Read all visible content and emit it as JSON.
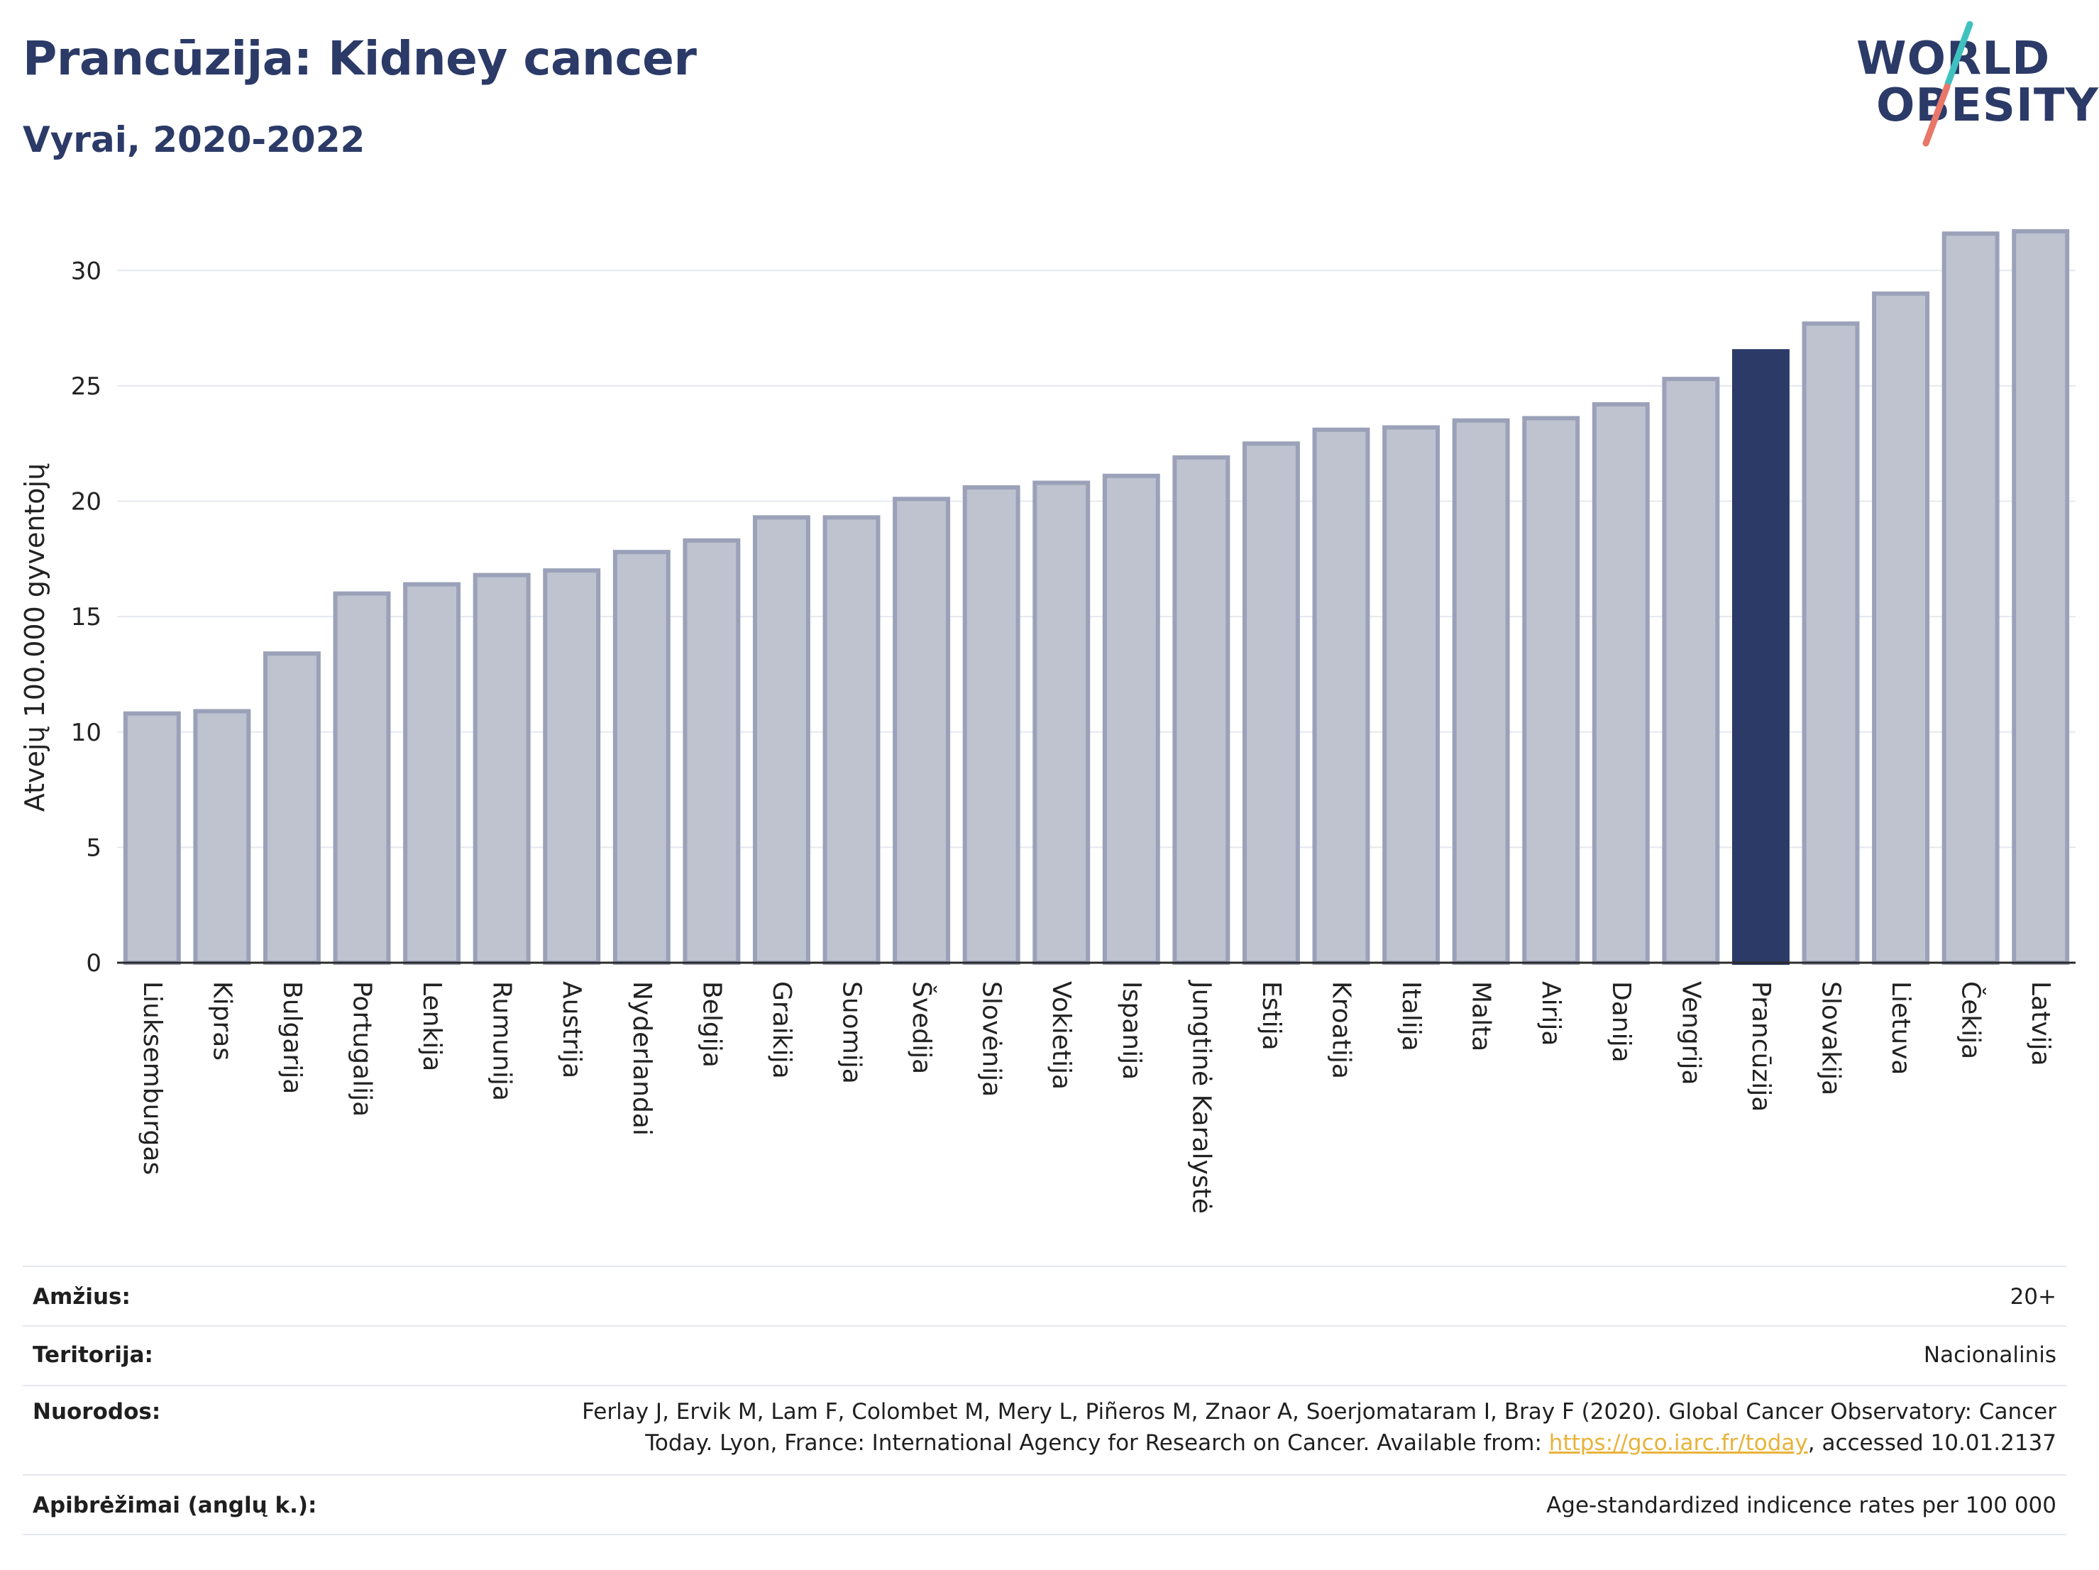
{
  "header": {
    "title": "Prancūzija: Kidney cancer",
    "subtitle": "Vyrai, 2020-2022"
  },
  "logo": {
    "line1": "WORLD",
    "line2": "OBESITY"
  },
  "colors": {
    "bar": "#bfc3d0",
    "bar_outline": "#9aa1b8",
    "highlight": "#2b3a67",
    "grid": "#e6e8ef",
    "logo_teal": "#3fc1c0",
    "logo_coral": "#e8776a"
  },
  "chart_data": {
    "type": "bar",
    "ylabel": "Atvejų 100.000 gyventojų",
    "ylim": [
      0,
      32.5
    ],
    "yticks": [
      0,
      5,
      10,
      15,
      20,
      25,
      30
    ],
    "grid": true,
    "highlight": "Prancūzija",
    "categories": [
      "Liuksemburgas",
      "Kipras",
      "Bulgarija",
      "Portugalija",
      "Lenkija",
      "Rumunija",
      "Austrija",
      "Nyderlandai",
      "Belgija",
      "Graikija",
      "Suomija",
      "Švedija",
      "Slovėnija",
      "Vokietija",
      "Ispanija",
      "Jungtinė Karalystė",
      "Estija",
      "Kroatija",
      "Italija",
      "Malta",
      "Airija",
      "Danija",
      "Vengrija",
      "Prancūzija",
      "Slovakija",
      "Lietuva",
      "Čekija",
      "Latvija"
    ],
    "values": [
      10.8,
      10.9,
      13.4,
      16.0,
      16.4,
      16.8,
      17.0,
      17.8,
      18.3,
      19.3,
      19.3,
      20.1,
      20.6,
      20.8,
      21.1,
      21.9,
      22.5,
      23.1,
      23.2,
      23.5,
      23.6,
      24.2,
      25.3,
      26.5,
      27.7,
      29.0,
      31.6,
      31.7
    ]
  },
  "meta": {
    "age_label": "Amžius:",
    "age_value": "20+",
    "territory_label": "Teritorija:",
    "territory_value": "Nacionalinis",
    "refs_label": "Nuorodos:",
    "refs_line1": "Ferlay J, Ervik M, Lam F, Colombet M, Mery L, Piñeros M, Znaor A, Soerjomataram I, Bray F (2020). Global Cancer Observatory: Cancer",
    "refs_line2_pre": "Today. Lyon, France: International Agency for Research on Cancer. Available from: ",
    "refs_link": "https://gco.iarc.fr/today",
    "refs_line2_post": ", accessed 10.01.2137",
    "defs_label": "Apibrėžimai (anglų k.):",
    "defs_value": "Age-standardized indicence rates per 100 000"
  }
}
